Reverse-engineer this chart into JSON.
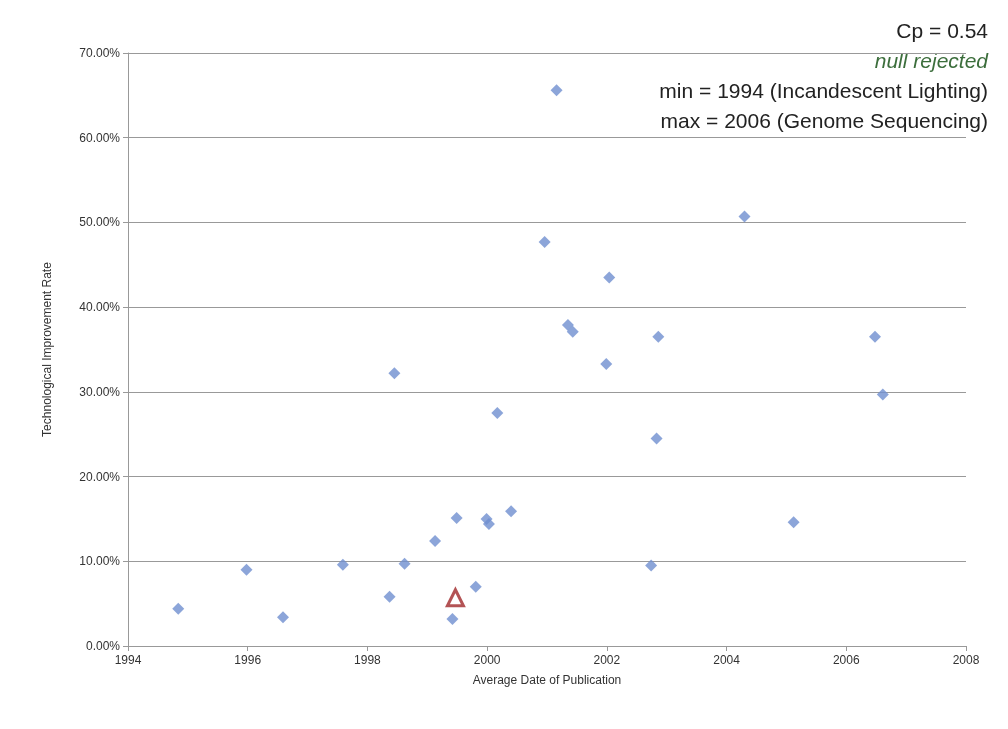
{
  "chart_data": {
    "type": "scatter",
    "xlabel": "Average Date of Publication",
    "ylabel": "Technological Improvement Rate",
    "annotations": [
      "Cp = 0.54",
      "null rejected",
      "min = 1994 (Incandescent Lighting)",
      "max = 2006 (Genome Sequencing)"
    ],
    "series": [
      {
        "color": "#6f8fd0",
        "marker": "diamond",
        "x": [
          1994.84,
          1995.98,
          1996.59,
          1997.59,
          1998.37,
          1998.45,
          1998.62,
          1999.13,
          1999.42,
          1999.49,
          1999.81,
          1999.99,
          2000.03,
          2000.17,
          2000.4,
          2000.96,
          2001.16,
          2001.35,
          2001.43,
          2001.99,
          2002.04,
          2002.74,
          2002.83,
          2002.86,
          2004.3,
          2005.12,
          2006.48,
          2006.61
        ],
        "values": [
          4.4,
          9.0,
          3.4,
          9.6,
          5.8,
          32.2,
          9.7,
          12.4,
          3.2,
          15.1,
          7.0,
          15.0,
          14.4,
          27.5,
          15.9,
          47.7,
          65.6,
          37.9,
          37.1,
          33.3,
          43.5,
          9.5,
          24.5,
          36.5,
          50.7,
          14.6,
          36.5,
          29.7
        ]
      },
      {
        "color": "#a0282a",
        "marker": "triangle",
        "x": [
          1999.47
        ],
        "values": [
          5.7
        ]
      }
    ],
    "xlim": [
      1994,
      2008
    ],
    "xticks": [
      1994,
      1996,
      1998,
      2000,
      2002,
      2004,
      2006,
      2008
    ],
    "ylim": [
      0,
      70
    ],
    "yticks": [
      {
        "value": 0,
        "label": "0.00%"
      },
      {
        "value": 10,
        "label": "10.00%"
      },
      {
        "value": 20,
        "label": "20.00%"
      },
      {
        "value": 30,
        "label": "30.00%"
      },
      {
        "value": 40,
        "label": "40.00%"
      },
      {
        "value": 50,
        "label": "50.00%"
      },
      {
        "value": 60,
        "label": "60.00%"
      },
      {
        "value": 70,
        "label": "70.00%"
      }
    ],
    "grid": "y"
  }
}
